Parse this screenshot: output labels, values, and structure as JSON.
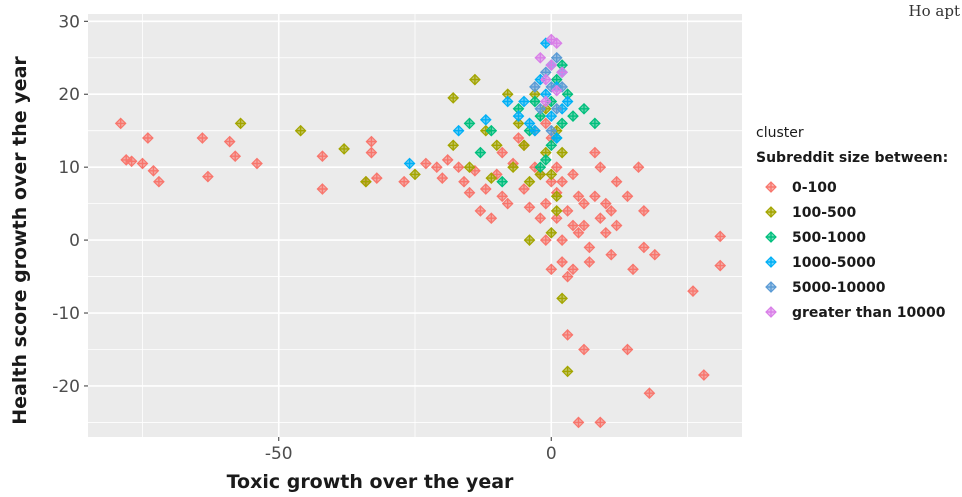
{
  "corner_text": "Ho apt",
  "chart_data": {
    "type": "scatter",
    "title": "",
    "xlabel": "Toxic growth over the year",
    "ylabel": "Health score growth over the year",
    "xlim": [
      -85,
      35
    ],
    "ylim": [
      -27,
      31
    ],
    "x_ticks": [
      -50,
      0
    ],
    "x_tick_labels": [
      "-50",
      "0"
    ],
    "y_ticks": [
      -20,
      -10,
      0,
      10,
      20,
      30
    ],
    "y_tick_labels": [
      "-20",
      "-10",
      "0",
      "10",
      "20",
      "30"
    ],
    "grid": true,
    "background": "#ebebeb",
    "marker": "plus-diamond",
    "legend": {
      "title_line1": "cluster",
      "title_line2": "Subreddit size between:",
      "placement": "right"
    },
    "series": [
      {
        "name": "0-100",
        "color": "#f8766d",
        "points": [
          [
            -79,
            16
          ],
          [
            -78,
            11
          ],
          [
            -77,
            10.8
          ],
          [
            -75,
            10.5
          ],
          [
            -74,
            14
          ],
          [
            -73,
            9.5
          ],
          [
            -72,
            8
          ],
          [
            -64,
            14
          ],
          [
            -63,
            8.7
          ],
          [
            -59,
            13.5
          ],
          [
            -58,
            11.5
          ],
          [
            -54,
            10.5
          ],
          [
            -42,
            11.5
          ],
          [
            -42,
            7
          ],
          [
            -34,
            8
          ],
          [
            -33,
            12
          ],
          [
            -33,
            13.5
          ],
          [
            -32,
            8.5
          ],
          [
            -27,
            8
          ],
          [
            -23,
            10.5
          ],
          [
            -21,
            10
          ],
          [
            -20,
            8.5
          ],
          [
            -19,
            11
          ],
          [
            -17,
            10
          ],
          [
            -16,
            8
          ],
          [
            -15,
            6.5
          ],
          [
            -14,
            9.5
          ],
          [
            -13,
            4
          ],
          [
            -12,
            7
          ],
          [
            -11,
            3
          ],
          [
            -10,
            9
          ],
          [
            -9,
            6
          ],
          [
            -9,
            12
          ],
          [
            -8,
            5
          ],
          [
            -7,
            10.5
          ],
          [
            -6,
            14
          ],
          [
            -5,
            13
          ],
          [
            -5,
            7
          ],
          [
            -4,
            4.5
          ],
          [
            -3,
            10
          ],
          [
            -3,
            15
          ],
          [
            -2,
            9
          ],
          [
            -2,
            3
          ],
          [
            -1,
            5
          ],
          [
            -1,
            16
          ],
          [
            0,
            8
          ],
          [
            0,
            14
          ],
          [
            1,
            10
          ],
          [
            1,
            6.5
          ],
          [
            1,
            3
          ],
          [
            2,
            8
          ],
          [
            2,
            -3
          ],
          [
            3,
            4
          ],
          [
            3,
            -5
          ],
          [
            4,
            9
          ],
          [
            4,
            -4
          ],
          [
            5,
            6
          ],
          [
            5,
            1
          ],
          [
            6,
            2
          ],
          [
            6,
            5
          ],
          [
            7,
            -1
          ],
          [
            7,
            -3
          ],
          [
            8,
            12
          ],
          [
            8,
            6
          ],
          [
            9,
            3
          ],
          [
            9,
            10
          ],
          [
            10,
            5
          ],
          [
            10,
            1
          ],
          [
            11,
            -2
          ],
          [
            11,
            4
          ],
          [
            12,
            8
          ],
          [
            12,
            2
          ],
          [
            14,
            6
          ],
          [
            15,
            -4
          ],
          [
            16,
            10
          ],
          [
            17,
            4
          ],
          [
            17,
            -1
          ],
          [
            19,
            -2
          ],
          [
            3,
            -13
          ],
          [
            6,
            -15
          ],
          [
            5,
            -25
          ],
          [
            9,
            -25
          ],
          [
            14,
            -15
          ],
          [
            18,
            -21
          ],
          [
            26,
            -7
          ],
          [
            28,
            -18.5
          ],
          [
            31,
            -3.5
          ],
          [
            31,
            0.5
          ],
          [
            2,
            0
          ],
          [
            4,
            2
          ],
          [
            -1,
            0
          ],
          [
            0,
            -4
          ]
        ]
      },
      {
        "name": "100-500",
        "color": "#a3a500",
        "points": [
          [
            -57,
            16
          ],
          [
            -46,
            15
          ],
          [
            -38,
            12.5
          ],
          [
            -34,
            8
          ],
          [
            -25,
            9
          ],
          [
            -18,
            19.5
          ],
          [
            -18,
            13
          ],
          [
            -15,
            10
          ],
          [
            -14,
            22
          ],
          [
            -12,
            15
          ],
          [
            -10,
            13
          ],
          [
            -8,
            20
          ],
          [
            -7,
            10
          ],
          [
            -6,
            16
          ],
          [
            -5,
            13
          ],
          [
            -4,
            8
          ],
          [
            -3,
            20
          ],
          [
            -2,
            9
          ],
          [
            -1,
            18
          ],
          [
            -1,
            12
          ],
          [
            0,
            9
          ],
          [
            1,
            15
          ],
          [
            1,
            6
          ],
          [
            2,
            12
          ],
          [
            2,
            -8
          ],
          [
            3,
            -18
          ],
          [
            -4,
            0
          ],
          [
            0,
            1
          ],
          [
            1,
            4
          ],
          [
            -11,
            8.5
          ]
        ]
      },
      {
        "name": "500-1000",
        "color": "#00bf7d",
        "points": [
          [
            -15,
            16
          ],
          [
            -13,
            12
          ],
          [
            -11,
            15
          ],
          [
            -9,
            8
          ],
          [
            -6,
            18
          ],
          [
            -4,
            15
          ],
          [
            -3,
            19
          ],
          [
            -2,
            17
          ],
          [
            -1,
            11
          ],
          [
            0,
            13
          ],
          [
            0,
            19
          ],
          [
            1,
            22
          ],
          [
            2,
            16
          ],
          [
            2,
            24
          ],
          [
            3,
            20
          ],
          [
            4,
            17
          ],
          [
            6,
            18
          ],
          [
            8,
            16
          ],
          [
            -2,
            10
          ],
          [
            1,
            14
          ]
        ]
      },
      {
        "name": "1000-5000",
        "color": "#00b0f6",
        "points": [
          [
            -26,
            10.5
          ],
          [
            -17,
            15
          ],
          [
            -12,
            16.5
          ],
          [
            -8,
            19
          ],
          [
            -6,
            17
          ],
          [
            -4,
            16
          ],
          [
            -3,
            15
          ],
          [
            -2,
            22
          ],
          [
            -1,
            20
          ],
          [
            -1,
            27
          ],
          [
            0,
            17
          ],
          [
            0,
            24
          ],
          [
            1,
            21
          ],
          [
            1,
            14
          ],
          [
            2,
            18
          ],
          [
            2,
            23
          ],
          [
            -5,
            19
          ],
          [
            3,
            19
          ]
        ]
      },
      {
        "name": "5000-10000",
        "color": "#5b9bd5",
        "points": [
          [
            -2,
            18
          ],
          [
            -1,
            23
          ],
          [
            0,
            15
          ],
          [
            0,
            21
          ],
          [
            1,
            25
          ],
          [
            1,
            18
          ],
          [
            2,
            21
          ],
          [
            -3,
            21
          ]
        ]
      },
      {
        "name": "greater than 10000",
        "color": "#d97fe8",
        "points": [
          [
            -2,
            25
          ],
          [
            -1,
            22
          ],
          [
            0,
            27.5
          ],
          [
            0,
            24
          ],
          [
            1,
            27
          ],
          [
            1,
            20.5
          ],
          [
            2,
            23
          ],
          [
            -1,
            19
          ]
        ]
      }
    ]
  }
}
